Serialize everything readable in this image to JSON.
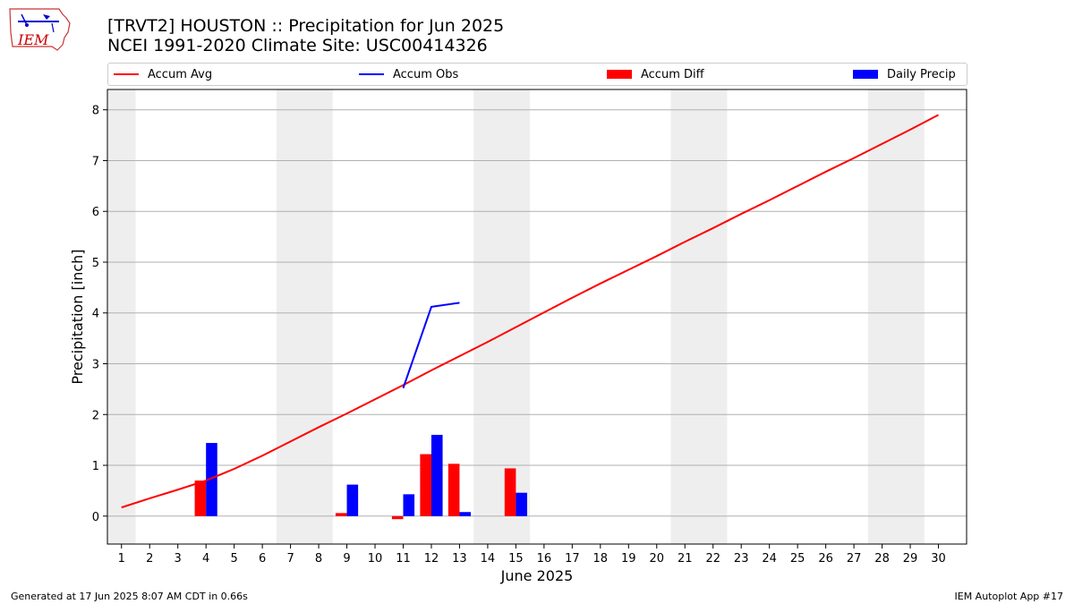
{
  "title_line1": "[TRVT2] HOUSTON :: Precipitation for Jun 2025",
  "title_line2": "NCEI 1991-2020 Climate Site: USC00414326",
  "logo_text": "IEM",
  "footer_left": "Generated at 17 Jun 2025 8:07 AM CDT in 0.66s",
  "footer_right": "IEM Autoplot App #17",
  "colors": {
    "avg": "#ff0000",
    "obs": "#0000ff",
    "diff": "#ff0000",
    "daily": "#0000ff",
    "weekend": "#eeeeee",
    "grid": "#b0b0b0"
  },
  "chart_data": {
    "type": "bar",
    "xlabel": "June 2025",
    "ylabel": "Precipitation [inch]",
    "xlim": [
      0.5,
      31.0
    ],
    "ylim": [
      -0.55,
      8.4
    ],
    "x_ticks": [
      1,
      2,
      3,
      4,
      5,
      6,
      7,
      8,
      9,
      10,
      11,
      12,
      13,
      14,
      15,
      16,
      17,
      18,
      19,
      20,
      21,
      22,
      23,
      24,
      25,
      26,
      27,
      28,
      29,
      30
    ],
    "y_ticks": [
      0,
      1,
      2,
      3,
      4,
      5,
      6,
      7,
      8
    ],
    "grid": "y",
    "legend_position": "top",
    "weekend_shading": [
      [
        0.5,
        1.5
      ],
      [
        6.5,
        8.5
      ],
      [
        13.5,
        15.5
      ],
      [
        20.5,
        22.5
      ],
      [
        27.5,
        29.5
      ]
    ],
    "series": [
      {
        "name": "Accum Avg",
        "kind": "line",
        "x": [
          1,
          2,
          3,
          4,
          5,
          6,
          7,
          8,
          9,
          10,
          11,
          12,
          13,
          14,
          15,
          16,
          17,
          18,
          19,
          20,
          21,
          22,
          23,
          24,
          25,
          26,
          27,
          28,
          29,
          30
        ],
        "values": [
          0.17,
          0.35,
          0.52,
          0.7,
          0.93,
          1.19,
          1.47,
          1.75,
          2.02,
          2.3,
          2.58,
          2.87,
          3.15,
          3.43,
          3.72,
          4.01,
          4.3,
          4.58,
          4.85,
          5.12,
          5.4,
          5.67,
          5.95,
          6.22,
          6.5,
          6.78,
          7.05,
          7.33,
          7.61,
          7.9
        ]
      },
      {
        "name": "Accum Obs",
        "kind": "line",
        "x": [
          11,
          12,
          13
        ],
        "values": [
          2.52,
          4.12,
          4.2
        ]
      },
      {
        "name": "Accum Diff",
        "kind": "bar",
        "x": [
          4,
          9,
          11,
          12,
          13,
          15
        ],
        "values": [
          0.7,
          0.06,
          -0.06,
          1.22,
          1.03,
          0.94
        ]
      },
      {
        "name": "Daily Precip",
        "kind": "bar",
        "x": [
          4,
          9,
          11,
          12,
          13,
          15
        ],
        "values": [
          1.44,
          0.62,
          0.43,
          1.6,
          0.08,
          0.46
        ]
      }
    ]
  }
}
